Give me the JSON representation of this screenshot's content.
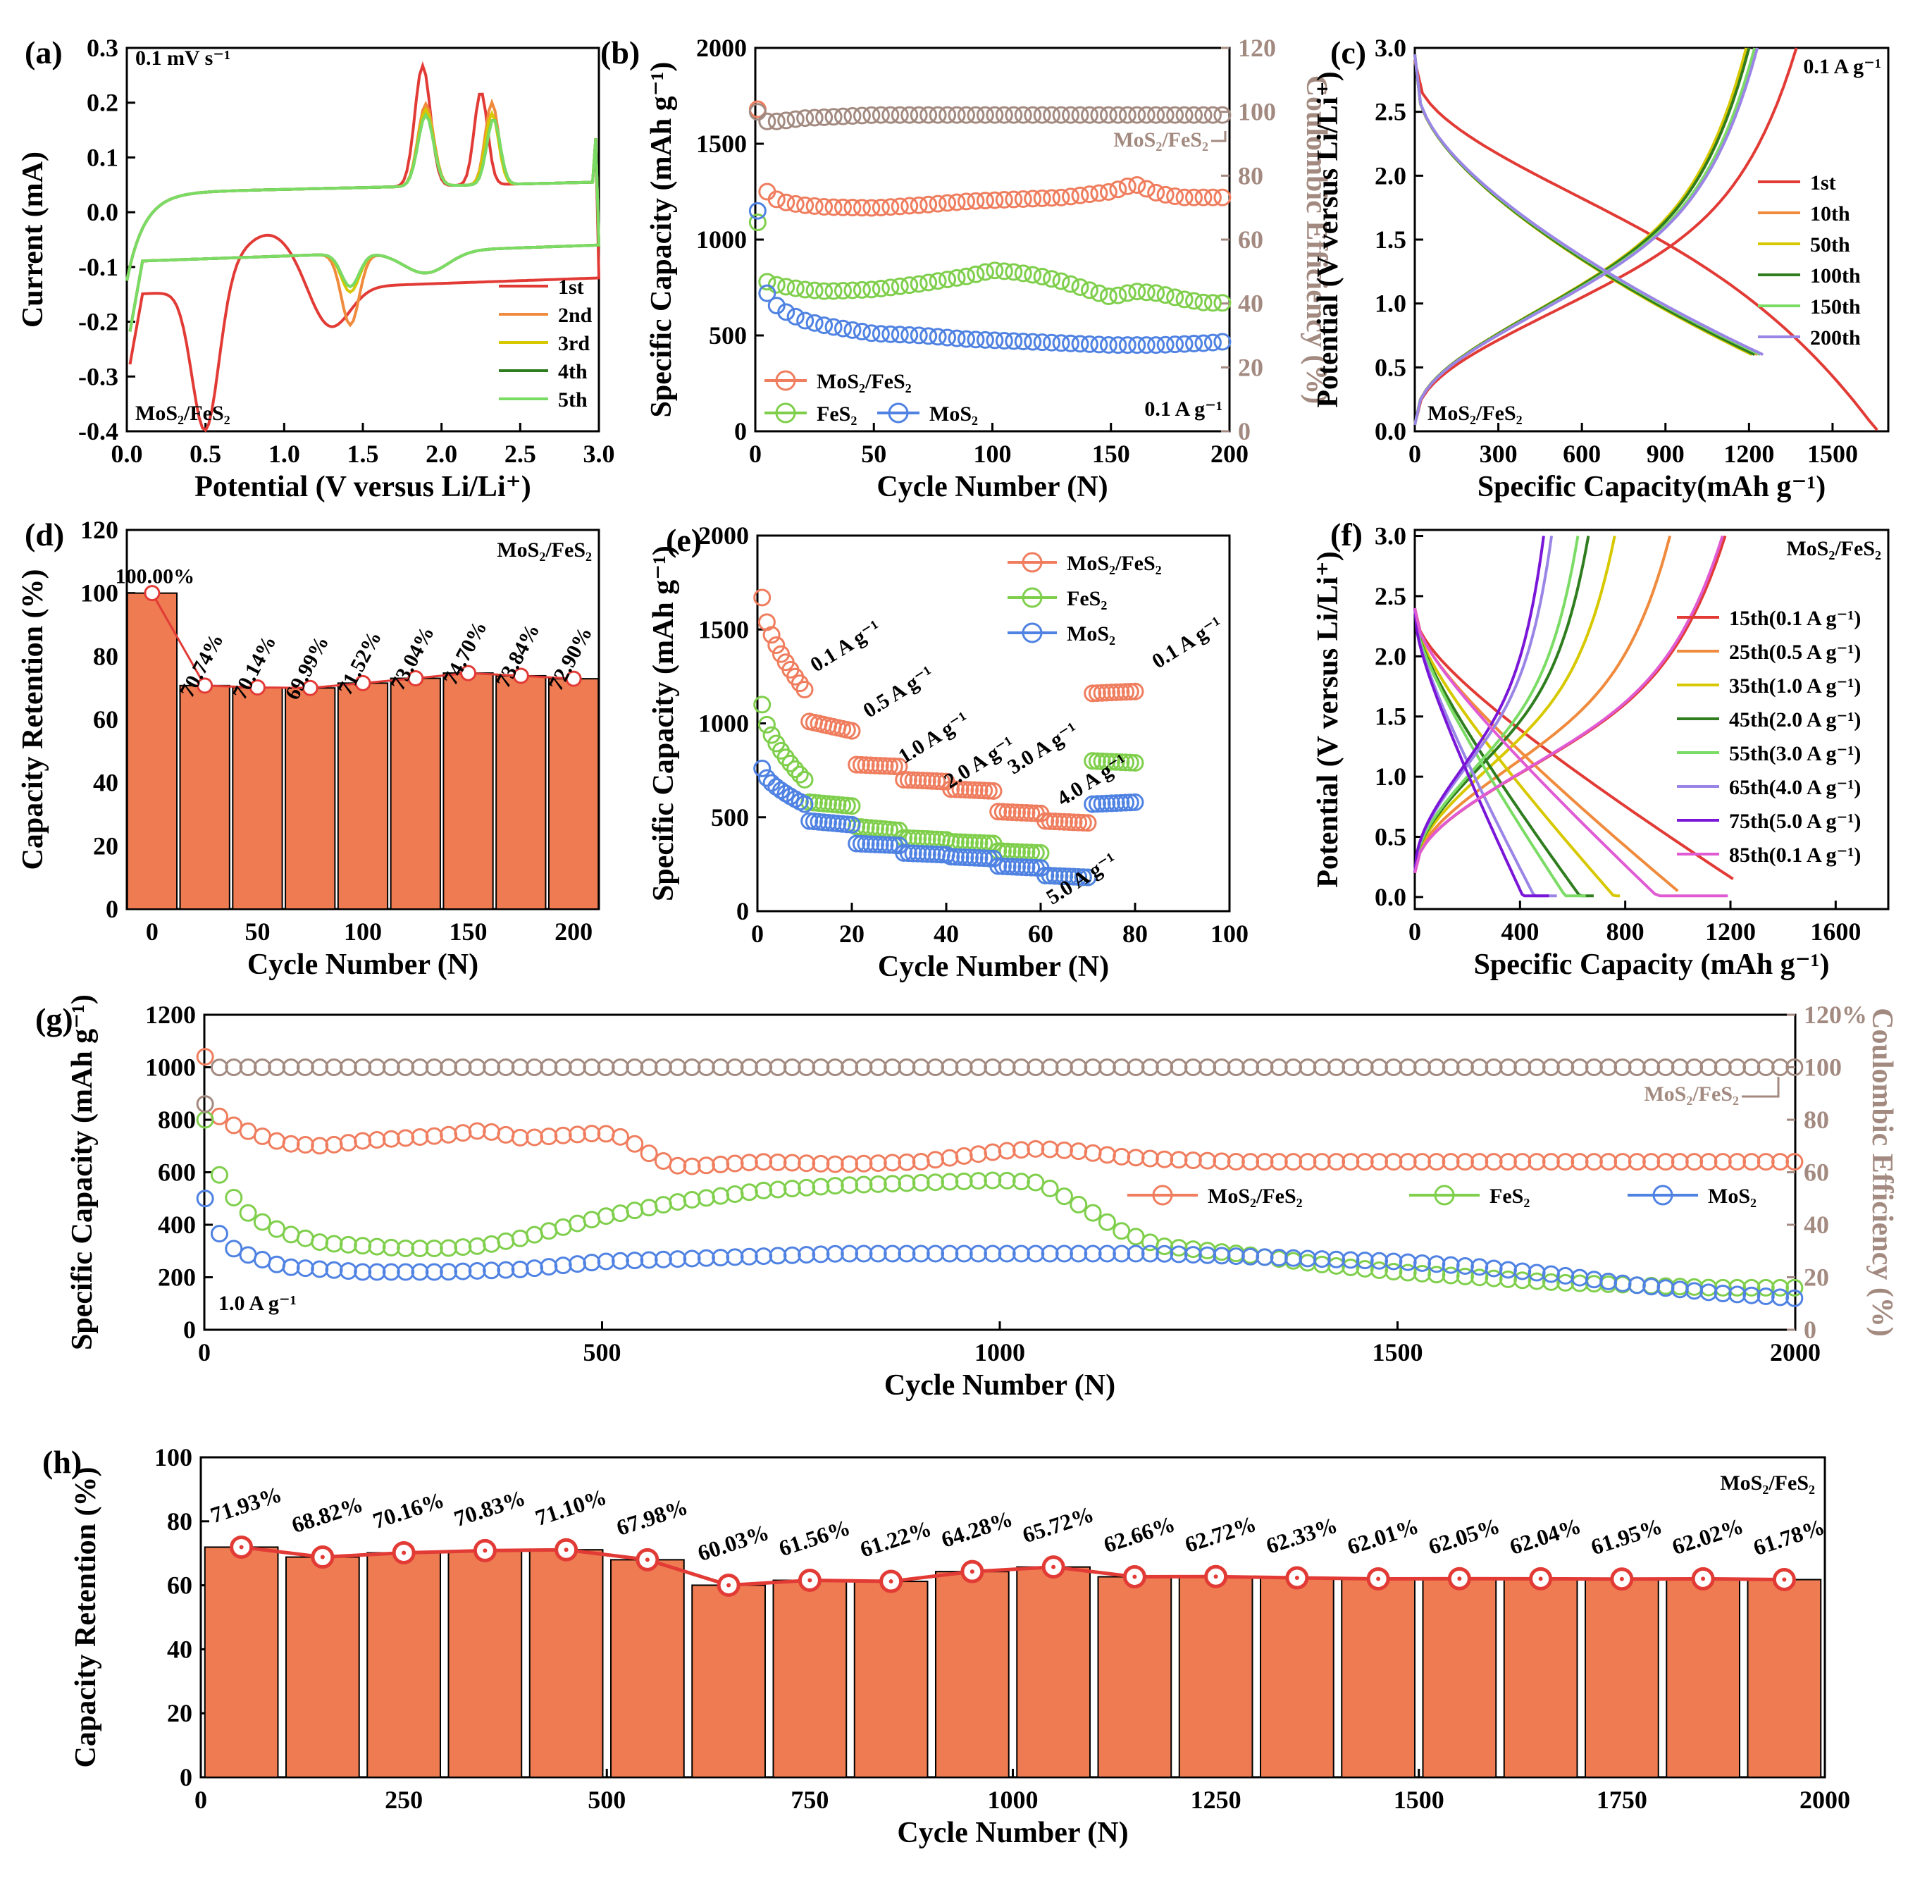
{
  "chart_data": [
    {
      "id": "a",
      "type": "line",
      "panel_label": "(a)",
      "title": "0.1 mV s⁻¹",
      "inset_label": "MoS₂/FeS₂",
      "xlabel": "Potential (V versus Li/Li⁺)",
      "ylabel": "Current (mA)",
      "xlim": [
        0,
        3
      ],
      "ylim": [
        -0.4,
        0.3
      ],
      "xticks": [
        "0.0",
        "0.5",
        "1.0",
        "1.5",
        "2.0",
        "2.5",
        "3.0"
      ],
      "yticks": [
        "-0.4",
        "-0.3",
        "-0.2",
        "-0.1",
        "0.0",
        "0.1",
        "0.2",
        "0.3"
      ],
      "legend": [
        "1st",
        "2nd",
        "3rd",
        "4th",
        "5th"
      ],
      "colors": [
        "#e23b36",
        "#f08a3c",
        "#d7c800",
        "#2e7d1e",
        "#7bdc65"
      ]
    },
    {
      "id": "b",
      "type": "scatter",
      "panel_label": "(b)",
      "xlabel": "Cycle Number (N)",
      "ylabel": "Specific Capacity (mAh g⁻¹)",
      "ylabel_right": "Coulombic Efficiency (%)",
      "xlim": [
        0,
        200
      ],
      "ylim": [
        0,
        2000
      ],
      "ylim_right": [
        0,
        120
      ],
      "xticks": [
        "0",
        "50",
        "100",
        "150",
        "200"
      ],
      "yticks": [
        "0",
        "500",
        "1000",
        "1500",
        "2000"
      ],
      "yticks_right": [
        "0",
        "20",
        "40",
        "60",
        "80",
        "100",
        "120"
      ],
      "annotation": "MoS₂/FeS₂",
      "rate_label": "0.1 A g⁻¹",
      "series": [
        {
          "name": "MoS₂/FeS₂",
          "color": "#ef7d5e",
          "x": [
            1,
            5,
            10,
            20,
            30,
            50,
            70,
            90,
            110,
            130,
            150,
            160,
            170,
            180,
            190,
            200
          ],
          "values": [
            1680,
            1250,
            1200,
            1180,
            1170,
            1165,
            1180,
            1200,
            1210,
            1220,
            1250,
            1290,
            1240,
            1220,
            1220,
            1220
          ]
        },
        {
          "name": "FeS₂",
          "color": "#7fcf4c",
          "x": [
            1,
            5,
            10,
            20,
            30,
            50,
            70,
            90,
            100,
            110,
            120,
            130,
            140,
            150,
            160,
            170,
            180,
            190,
            200
          ],
          "values": [
            1090,
            780,
            760,
            740,
            730,
            740,
            770,
            810,
            840,
            830,
            810,
            780,
            740,
            700,
            730,
            720,
            690,
            670,
            670
          ]
        },
        {
          "name": "MoS₂",
          "color": "#4f82e2",
          "x": [
            1,
            5,
            10,
            20,
            30,
            40,
            50,
            70,
            90,
            110,
            130,
            150,
            170,
            190,
            200
          ],
          "values": [
            1150,
            720,
            640,
            580,
            550,
            530,
            510,
            500,
            480,
            470,
            460,
            450,
            450,
            460,
            470
          ]
        },
        {
          "name": "Coulombic Efficiency",
          "color": "#a38a80",
          "axis": "right",
          "x": [
            1,
            5,
            10,
            20,
            50,
            100,
            150,
            200
          ],
          "values": [
            100,
            97,
            97,
            98,
            99,
            99,
            99,
            99
          ]
        }
      ]
    },
    {
      "id": "c",
      "type": "line",
      "panel_label": "(c)",
      "xlabel": "Specific Capacity(mAh g⁻¹)",
      "ylabel": "Potential (V versus Li/Li⁺)",
      "xlim": [
        0,
        1700
      ],
      "ylim": [
        0,
        3
      ],
      "xticks": [
        "0",
        "300",
        "600",
        "900",
        "1200",
        "1500"
      ],
      "yticks": [
        "0.0",
        "0.5",
        "1.0",
        "1.5",
        "2.0",
        "2.5",
        "3.0"
      ],
      "rate_label": "0.1 A g⁻¹",
      "inset_label": "MoS₂/FeS₂",
      "legend": [
        "1st",
        "10th",
        "50th",
        "100th",
        "150th",
        "200th"
      ],
      "colors": [
        "#e23b36",
        "#f08a3c",
        "#d7c800",
        "#2e7d1e",
        "#7bdc65",
        "#9a85e6"
      ],
      "discharge_capacity": [
        1660,
        1230,
        1210,
        1220,
        1240,
        1250
      ],
      "charge_capacity": [
        1370,
        1200,
        1190,
        1200,
        1220,
        1230
      ]
    },
    {
      "id": "d",
      "type": "bar",
      "panel_label": "(d)",
      "xlabel": "Cycle Number (N)",
      "ylabel": "Capacity Retention (%)",
      "xlim": [
        -12,
        212
      ],
      "ylim": [
        0,
        120
      ],
      "xticks": [
        "0",
        "50",
        "100",
        "150",
        "200"
      ],
      "yticks": [
        "0",
        "20",
        "40",
        "60",
        "80",
        "100",
        "120"
      ],
      "inset_label": "MoS₂/FeS₂",
      "bar_color": "#ee7b51",
      "x": [
        0,
        25,
        50,
        75,
        100,
        125,
        150,
        175,
        200
      ],
      "values": [
        100.0,
        70.74,
        70.14,
        69.99,
        71.52,
        73.04,
        74.7,
        73.84,
        72.9
      ],
      "labels": [
        "100.00%",
        "70.74%",
        "70.14%",
        "69.99%",
        "71.52%",
        "73.04%",
        "74.70%",
        "73.84%",
        "72.90%"
      ]
    },
    {
      "id": "e",
      "type": "scatter",
      "panel_label": "(e)",
      "xlabel": "Cycle Number (N)",
      "ylabel": "Specific Capacity (mAh g⁻¹)",
      "xlim": [
        0,
        100
      ],
      "ylim": [
        0,
        2000
      ],
      "xticks": [
        "0",
        "20",
        "40",
        "60",
        "80",
        "100"
      ],
      "yticks": [
        "0",
        "500",
        "1000",
        "1500",
        "2000"
      ],
      "rate_labels": [
        "0.1 A g⁻¹",
        "0.5 A g⁻¹",
        "1.0 A g⁻¹",
        "2.0 A g⁻¹",
        "3.0 A g⁻¹",
        "4.0 A g⁻¹",
        "5.0 A g⁻¹",
        "0.1 A g⁻¹"
      ],
      "series": [
        {
          "name": "MoS₂/FeS₂",
          "color": "#ef7d5e",
          "segments": [
            [
              1670,
              1180
            ],
            [
              1010,
              960
            ],
            [
              780,
              770
            ],
            [
              700,
              690
            ],
            [
              650,
              640
            ],
            [
              530,
              520
            ],
            [
              480,
              470
            ],
            [
              1160,
              1170
            ]
          ]
        },
        {
          "name": "FeS₂",
          "color": "#7fcf4c",
          "segments": [
            [
              1100,
              700
            ],
            [
              580,
              560
            ],
            [
              450,
              430
            ],
            [
              390,
              380
            ],
            [
              370,
              360
            ],
            [
              320,
              310
            ],
            [
              190,
              180
            ],
            [
              800,
              790
            ]
          ]
        },
        {
          "name": "MoS₂",
          "color": "#4f82e2",
          "segments": [
            [
              760,
              570
            ],
            [
              480,
              460
            ],
            [
              360,
              350
            ],
            [
              310,
              300
            ],
            [
              290,
              280
            ],
            [
              240,
              230
            ],
            [
              190,
              180
            ],
            [
              570,
              580
            ]
          ]
        }
      ]
    },
    {
      "id": "f",
      "type": "line",
      "panel_label": "(f)",
      "xlabel": "Specific Capacity (mAh g⁻¹)",
      "ylabel": "Potential (V versus Li/Li⁺)",
      "xlim": [
        0,
        1800
      ],
      "ylim": [
        -0.1,
        3.05
      ],
      "xticks": [
        "0",
        "400",
        "800",
        "1200",
        "1600"
      ],
      "yticks": [
        "0.0",
        "0.5",
        "1.0",
        "1.5",
        "2.0",
        "2.5",
        "3.0"
      ],
      "inset_label": "MoS₂/FeS₂",
      "legend": [
        "15th(0.1 A g⁻¹)",
        "25th(0.5 A g⁻¹)",
        "35th(1.0 A g⁻¹)",
        "45th(2.0 A g⁻¹)",
        "55th(3.0 A g⁻¹)",
        "65th(4.0 A g⁻¹)",
        "75th(5.0 A g⁻¹)",
        "85th(0.1 A g⁻¹)"
      ],
      "colors": [
        "#e23b36",
        "#f08a3c",
        "#d7c800",
        "#2e7d1e",
        "#7bdc65",
        "#9a85e6",
        "#7a16d8",
        "#e05bd3"
      ],
      "discharge_capacity": [
        1210,
        1000,
        780,
        680,
        650,
        540,
        510,
        1190
      ],
      "charge_capacity": [
        1180,
        970,
        760,
        660,
        620,
        520,
        490,
        1170
      ]
    },
    {
      "id": "g",
      "type": "scatter",
      "panel_label": "(g)",
      "xlabel": "Cycle Number (N)",
      "ylabel": "Specific Capacity (mAh g⁻¹)",
      "ylabel_right": "Coulombic Efficiency (%)",
      "xlim": [
        0,
        2000
      ],
      "ylim": [
        0,
        1200
      ],
      "ylim_right": [
        0,
        120
      ],
      "xticks": [
        "0",
        "500",
        "1000",
        "1500",
        "2000"
      ],
      "yticks": [
        "0",
        "200",
        "400",
        "600",
        "800",
        "1000",
        "1200"
      ],
      "yticks_right": [
        "0",
        "20",
        "40",
        "60",
        "80",
        "100",
        "120%"
      ],
      "annotation": "MoS₂/FeS₂",
      "rate_label": "1.0 A g⁻¹",
      "series": [
        {
          "name": "MoS₂/FeS₂",
          "color": "#ef7d5e",
          "x": [
            1,
            20,
            60,
            100,
            150,
            200,
            250,
            300,
            350,
            400,
            450,
            500,
            530,
            570,
            600,
            700,
            800,
            900,
            1000,
            1050,
            1100,
            1150,
            1200,
            1300,
            1500,
            1700,
            2000
          ],
          "values": [
            1040,
            800,
            750,
            710,
            700,
            720,
            730,
            740,
            760,
            730,
            740,
            750,
            730,
            650,
            620,
            640,
            630,
            640,
            680,
            690,
            680,
            660,
            650,
            640,
            640,
            640,
            640
          ]
        },
        {
          "name": "FeS₂",
          "color": "#7fcf4c",
          "x": [
            1,
            10,
            20,
            40,
            60,
            100,
            150,
            200,
            250,
            300,
            350,
            400,
            500,
            600,
            700,
            800,
            900,
            1000,
            1050,
            1080,
            1120,
            1150,
            1200,
            1300,
            1400,
            1500,
            1600,
            1700,
            1800,
            1900,
            2000
          ],
          "values": [
            800,
            680,
            580,
            490,
            430,
            370,
            330,
            320,
            310,
            310,
            320,
            350,
            430,
            490,
            530,
            550,
            560,
            570,
            560,
            510,
            440,
            380,
            320,
            290,
            250,
            220,
            200,
            180,
            170,
            160,
            160
          ]
        },
        {
          "name": "MoS₂",
          "color": "#4f82e2",
          "x": [
            1,
            10,
            20,
            40,
            70,
            100,
            150,
            200,
            300,
            400,
            500,
            600,
            700,
            800,
            900,
            1000,
            1100,
            1200,
            1300,
            1400,
            1500,
            1600,
            1700,
            1800,
            1900,
            2000
          ],
          "values": [
            500,
            420,
            360,
            300,
            270,
            240,
            230,
            220,
            220,
            230,
            260,
            270,
            280,
            290,
            290,
            290,
            290,
            290,
            280,
            270,
            260,
            240,
            210,
            170,
            140,
            120
          ]
        },
        {
          "name": "Coulombic Efficiency",
          "color": "#a38a80",
          "axis": "right",
          "x": [
            1,
            5,
            20,
            100,
            500,
            1000,
            1500,
            2000
          ],
          "values": [
            86,
            99,
            100,
            100,
            100,
            100,
            100,
            100
          ]
        }
      ]
    },
    {
      "id": "h",
      "type": "bar",
      "panel_label": "(h)",
      "xlabel": "Cycle Number (N)",
      "ylabel": "Capacity Retention (%)",
      "xlim": [
        0,
        2000
      ],
      "ylim": [
        0,
        100
      ],
      "xticks": [
        "0",
        "250",
        "500",
        "750",
        "1000",
        "1250",
        "1500",
        "1750",
        "2000"
      ],
      "yticks": [
        "0",
        "20",
        "40",
        "60",
        "80",
        "100"
      ],
      "inset_label": "MoS₂/FeS₂",
      "bar_color": "#ee7b51",
      "x": [
        50,
        150,
        250,
        350,
        450,
        550,
        650,
        750,
        850,
        950,
        1050,
        1150,
        1250,
        1350,
        1450,
        1550,
        1650,
        1750,
        1850,
        1950
      ],
      "values": [
        71.93,
        68.82,
        70.16,
        70.83,
        71.1,
        67.98,
        60.03,
        61.56,
        61.22,
        64.28,
        65.72,
        62.66,
        62.72,
        62.33,
        62.01,
        62.05,
        62.04,
        61.95,
        62.02,
        61.78
      ],
      "labels": [
        "71.93%",
        "68.82%",
        "70.16%",
        "70.83%",
        "71.10%",
        "67.98%",
        "60.03%",
        "61.56%",
        "61.22%",
        "64.28%",
        "65.72%",
        "62.66%",
        "62.72%",
        "62.33%",
        "62.01%",
        "62.05%",
        "62.04%",
        "61.95%",
        "62.02%",
        "61.78%"
      ]
    }
  ]
}
